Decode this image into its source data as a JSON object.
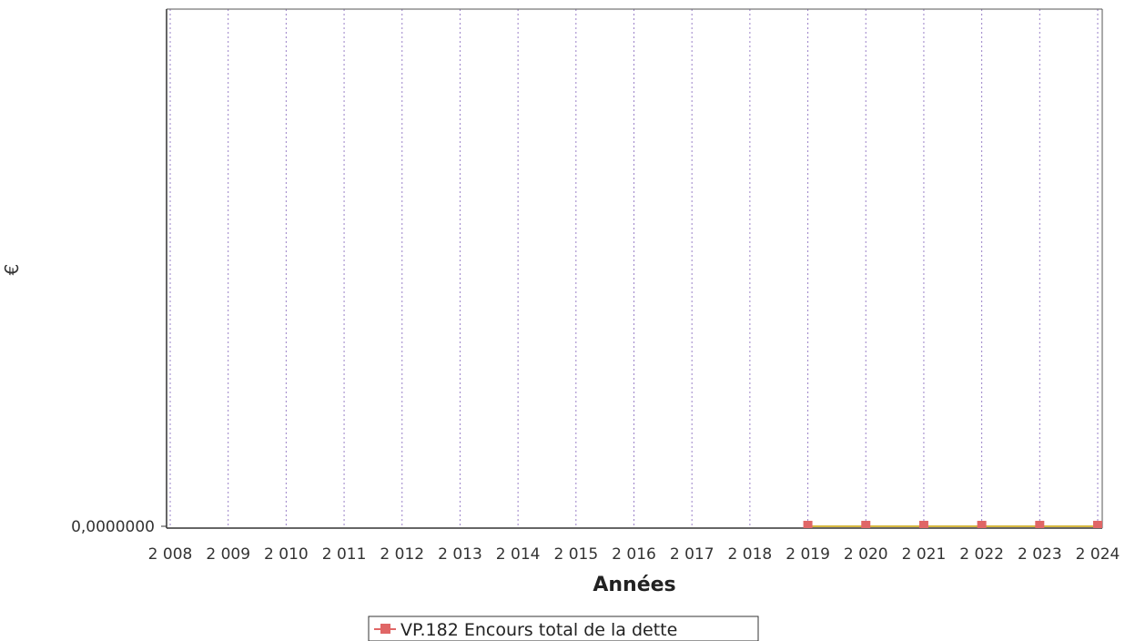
{
  "chart_data": {
    "type": "line",
    "title": "",
    "xlabel": "Années",
    "ylabel": "€",
    "x_tick_labels": [
      "2 008",
      "2 009",
      "2 010",
      "2 011",
      "2 012",
      "2 013",
      "2 014",
      "2 015",
      "2 016",
      "2 017",
      "2 018",
      "2 019",
      "2 020",
      "2 021",
      "2 022",
      "2 023",
      "2 024"
    ],
    "x": [
      2008,
      2009,
      2010,
      2011,
      2012,
      2013,
      2014,
      2015,
      2016,
      2017,
      2018,
      2019,
      2020,
      2021,
      2022,
      2023,
      2024
    ],
    "y_tick_labels": [
      "0,0000000"
    ],
    "ylim": [
      0,
      1
    ],
    "grid": true,
    "legend_position": "bottom",
    "series": [
      {
        "name": "VP.182 Encours total de la dette",
        "color": "#e06666",
        "x": [
          2019,
          2020,
          2021,
          2022,
          2023,
          2024
        ],
        "values": [
          0,
          0,
          0,
          0,
          0,
          0
        ]
      }
    ]
  },
  "colors": {
    "grid": "#9a80c8",
    "plot_border": "#555555",
    "marker": "#e06666",
    "series_line": "#c8a000"
  }
}
